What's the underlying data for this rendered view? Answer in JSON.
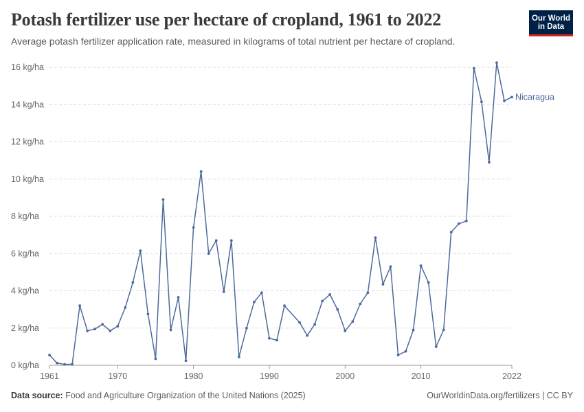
{
  "title": "Potash fertilizer use per hectare of cropland, 1961 to 2022",
  "subtitle": "Average potash fertilizer application rate, measured in kilograms of total nutrient per hectare of cropland.",
  "logo": {
    "line1": "Our World",
    "line2": "in Data"
  },
  "footer": {
    "source_label": "Data source:",
    "source_text": " Food and Agriculture Organization of the United Nations (2025)",
    "link": "OurWorldinData.org/fertilizers | CC BY"
  },
  "colors": {
    "series": "#4c6a9c",
    "grid": "#dddddd",
    "axis": "#999999"
  },
  "chart_data": {
    "type": "line",
    "ylim": [
      0,
      16
    ],
    "xlim": [
      1961,
      2022
    ],
    "y_ticks": [
      0,
      2,
      4,
      6,
      8,
      10,
      12,
      14,
      16
    ],
    "y_tick_labels": [
      "0 kg/ha",
      "2 kg/ha",
      "4 kg/ha",
      "6 kg/ha",
      "8 kg/ha",
      "10 kg/ha",
      "12 kg/ha",
      "14 kg/ha",
      "16 kg/ha"
    ],
    "x_ticks": [
      1961,
      1970,
      1980,
      1990,
      2000,
      2010,
      2022
    ],
    "x_tick_labels": [
      "1961",
      "1970",
      "1980",
      "1990",
      "2000",
      "2010",
      "2022"
    ],
    "grid": "horizontal-dashed",
    "series": [
      {
        "name": "Nicaragua",
        "x": [
          1961,
          1962,
          1963,
          1964,
          1965,
          1966,
          1967,
          1968,
          1969,
          1970,
          1971,
          1972,
          1973,
          1974,
          1975,
          1976,
          1977,
          1978,
          1979,
          1980,
          1981,
          1982,
          1983,
          1984,
          1985,
          1986,
          1987,
          1988,
          1989,
          1990,
          1991,
          1992,
          1994,
          1995,
          1996,
          1997,
          1998,
          1999,
          2000,
          2001,
          2002,
          2003,
          2004,
          2005,
          2006,
          2007,
          2008,
          2009,
          2010,
          2011,
          2012,
          2013,
          2014,
          2015,
          2016,
          2017,
          2018,
          2019,
          2020,
          2021,
          2022
        ],
        "y": [
          0.55,
          0.12,
          0.05,
          0.06,
          3.2,
          1.85,
          1.95,
          2.2,
          1.85,
          2.1,
          3.1,
          4.45,
          6.15,
          2.75,
          0.35,
          8.9,
          1.9,
          3.65,
          0.25,
          7.4,
          10.4,
          6.0,
          6.7,
          3.95,
          6.7,
          0.45,
          2.0,
          3.4,
          3.9,
          1.45,
          1.35,
          3.2,
          2.3,
          1.6,
          2.2,
          3.45,
          3.8,
          3.0,
          1.85,
          2.35,
          3.3,
          3.9,
          6.85,
          4.35,
          5.3,
          0.55,
          0.75,
          1.9,
          5.35,
          4.45,
          1.0,
          1.9,
          7.15,
          7.6,
          7.75,
          15.95,
          14.15,
          10.9,
          16.25,
          14.2,
          14.4
        ]
      }
    ]
  }
}
